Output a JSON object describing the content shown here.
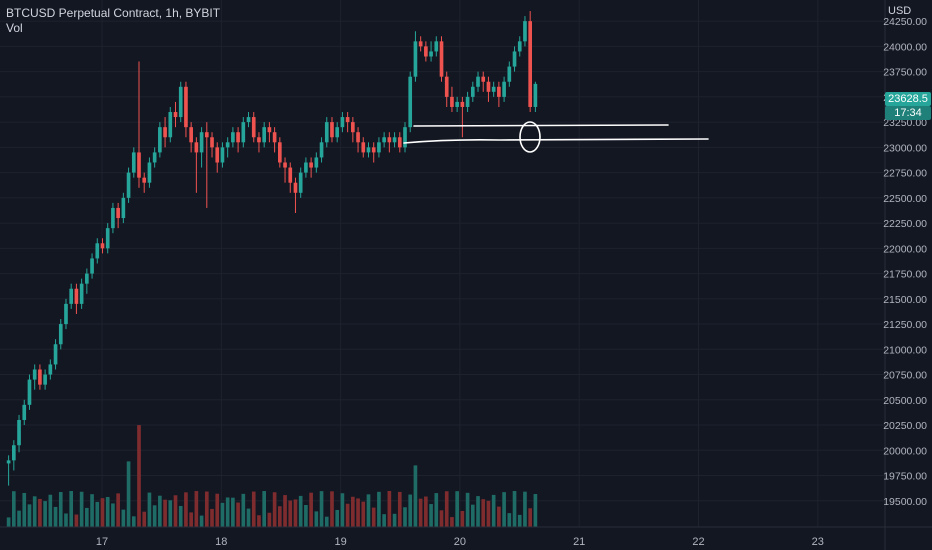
{
  "header": {
    "title": "BTCUSD Perpetual Contract, 1h, BYBIT",
    "volume_label": "Vol"
  },
  "price_axis": {
    "currency": "USD",
    "current_price": "23628.5",
    "countdown": "17:34"
  },
  "colors": {
    "background": "#131722",
    "up": "#26a69a",
    "down": "#ef5350",
    "up_volume": "#1f6b66",
    "down_volume": "#7f2c2f",
    "grid": "#1e222d",
    "axis_text": "#b2b5be"
  },
  "chart_data": {
    "type": "candlestick",
    "symbol": "BTCUSD Perpetual Contract",
    "interval": "1h",
    "exchange": "BYBIT",
    "x_ticks": [
      "17",
      "18",
      "19",
      "20",
      "21",
      "22",
      "23"
    ],
    "y_ticks": [
      24250,
      24000,
      23750,
      23500,
      23250,
      23000,
      22750,
      22500,
      22250,
      22000,
      21750,
      21500,
      21250,
      21000,
      20750,
      20500,
      20250,
      20000,
      19750,
      19500
    ],
    "y_range": [
      19250,
      24400
    ],
    "grid": true,
    "candles": [
      [
        19870,
        19900,
        19650,
        19950
      ],
      [
        19900,
        20050,
        19800,
        20100
      ],
      [
        20050,
        20300,
        19980,
        20350
      ],
      [
        20300,
        20450,
        20250,
        20500
      ],
      [
        20450,
        20700,
        20400,
        20750
      ],
      [
        20700,
        20800,
        20600,
        20850
      ],
      [
        20800,
        20650,
        20600,
        20850
      ],
      [
        20650,
        20750,
        20600,
        20800
      ],
      [
        20750,
        20850,
        20700,
        20900
      ],
      [
        20850,
        21050,
        20800,
        21100
      ],
      [
        21050,
        21250,
        21000,
        21300
      ],
      [
        21250,
        21450,
        21200,
        21500
      ],
      [
        21450,
        21600,
        21400,
        21650
      ],
      [
        21600,
        21450,
        21350,
        21650
      ],
      [
        21450,
        21650,
        21400,
        21700
      ],
      [
        21650,
        21750,
        21550,
        21800
      ],
      [
        21750,
        21900,
        21700,
        21950
      ],
      [
        21900,
        22050,
        21850,
        22100
      ],
      [
        22050,
        22000,
        21950,
        22100
      ],
      [
        22000,
        22200,
        21950,
        22250
      ],
      [
        22200,
        22400,
        22150,
        22450
      ],
      [
        22400,
        22300,
        22200,
        22450
      ],
      [
        22300,
        22500,
        22250,
        22550
      ],
      [
        22500,
        22750,
        22450,
        22800
      ],
      [
        22750,
        22950,
        22700,
        23000
      ],
      [
        22950,
        22700,
        22600,
        23850
      ],
      [
        22700,
        22650,
        22550,
        22750
      ],
      [
        22650,
        22850,
        22600,
        22900
      ],
      [
        22850,
        22950,
        22800,
        23000
      ],
      [
        22950,
        23200,
        22900,
        23250
      ],
      [
        23200,
        23100,
        23000,
        23300
      ],
      [
        23100,
        23350,
        23050,
        23400
      ],
      [
        23350,
        23300,
        23200,
        23450
      ],
      [
        23300,
        23600,
        23250,
        23650
      ],
      [
        23600,
        23200,
        23100,
        23650
      ],
      [
        23200,
        23050,
        22950,
        23250
      ],
      [
        23050,
        22950,
        22550,
        23100
      ],
      [
        22950,
        23150,
        22800,
        23200
      ],
      [
        23150,
        23100,
        22400,
        23250
      ],
      [
        23100,
        23000,
        22900,
        23150
      ],
      [
        23000,
        22850,
        22750,
        23050
      ],
      [
        22850,
        23000,
        22800,
        23050
      ],
      [
        23000,
        23050,
        22900,
        23100
      ],
      [
        23050,
        23150,
        23000,
        23200
      ],
      [
        23150,
        23050,
        22950,
        23200
      ],
      [
        23050,
        23250,
        23000,
        23300
      ],
      [
        23250,
        23300,
        23200,
        23350
      ],
      [
        23300,
        23100,
        23050,
        23350
      ],
      [
        23100,
        23050,
        22950,
        23150
      ],
      [
        23050,
        23200,
        23000,
        23250
      ],
      [
        23200,
        23150,
        23050,
        23250
      ],
      [
        23150,
        23050,
        22950,
        23200
      ],
      [
        23050,
        22850,
        22800,
        23100
      ],
      [
        22850,
        22800,
        22650,
        22900
      ],
      [
        22800,
        22650,
        22550,
        22850
      ],
      [
        22650,
        22550,
        22350,
        22700
      ],
      [
        22550,
        22750,
        22500,
        22800
      ],
      [
        22750,
        22850,
        22700,
        22900
      ],
      [
        22850,
        22800,
        22700,
        22900
      ],
      [
        22800,
        22900,
        22750,
        22950
      ],
      [
        22900,
        23050,
        22850,
        23100
      ],
      [
        23050,
        23250,
        23000,
        23300
      ],
      [
        23250,
        23100,
        23050,
        23300
      ],
      [
        23100,
        23200,
        23050,
        23250
      ],
      [
        23200,
        23300,
        23150,
        23350
      ],
      [
        23300,
        23250,
        23150,
        23350
      ],
      [
        23250,
        23150,
        23050,
        23300
      ],
      [
        23150,
        23050,
        22950,
        23200
      ],
      [
        23050,
        22950,
        22900,
        23100
      ],
      [
        22950,
        23000,
        22900,
        23050
      ],
      [
        23000,
        22950,
        22850,
        23050
      ],
      [
        22950,
        23050,
        22900,
        23100
      ],
      [
        23050,
        23100,
        23000,
        23150
      ],
      [
        23100,
        23050,
        22950,
        23150
      ],
      [
        23050,
        23100,
        23000,
        23150
      ],
      [
        23100,
        23000,
        22950,
        23150
      ],
      [
        23000,
        23200,
        22950,
        23250
      ],
      [
        23200,
        23700,
        23150,
        23750
      ],
      [
        23700,
        24050,
        23650,
        24150
      ],
      [
        24050,
        24000,
        23950,
        24100
      ],
      [
        24000,
        23900,
        23850,
        24050
      ],
      [
        23900,
        23950,
        23850,
        24050
      ],
      [
        23950,
        24050,
        23900,
        24100
      ],
      [
        24050,
        23700,
        23650,
        24100
      ],
      [
        23700,
        23500,
        23400,
        23750
      ],
      [
        23500,
        23400,
        23350,
        23600
      ],
      [
        23400,
        23450,
        23350,
        23500
      ],
      [
        23450,
        23400,
        23100,
        23500
      ],
      [
        23400,
        23500,
        23350,
        23550
      ],
      [
        23500,
        23600,
        23450,
        23650
      ],
      [
        23600,
        23700,
        23550,
        23750
      ],
      [
        23700,
        23650,
        23550,
        23750
      ],
      [
        23650,
        23550,
        23450,
        23700
      ],
      [
        23550,
        23600,
        23500,
        23650
      ],
      [
        23600,
        23500,
        23400,
        23650
      ],
      [
        23500,
        23650,
        23450,
        23700
      ],
      [
        23650,
        23800,
        23600,
        23850
      ],
      [
        23800,
        23950,
        23750,
        24000
      ],
      [
        23950,
        24050,
        23900,
        24100
      ],
      [
        24050,
        24250,
        24000,
        24300
      ],
      [
        24250,
        23400,
        23350,
        24350
      ],
      [
        23400,
        23628.5,
        23350,
        23650
      ]
    ],
    "volumes": [
      "#26a69a",
      "#ef5350"
    ],
    "annotations": [
      "horizontal line near 23350",
      "horizontal line near 23200",
      "circle around last candle low"
    ]
  }
}
